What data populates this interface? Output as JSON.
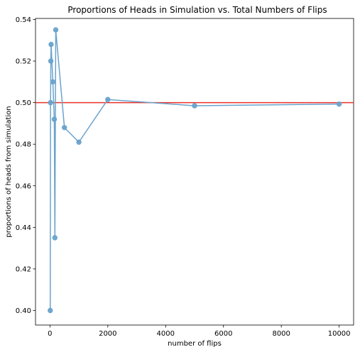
{
  "chart_data": {
    "type": "line",
    "title": "Proportions of Heads in Simulation vs. Total Numbers of Flips",
    "xlabel": "number of flips",
    "ylabel": "proportions of heads from simulation",
    "xlim": [
      -500,
      10500
    ],
    "ylim": [
      0.393,
      0.5405
    ],
    "xticks": [
      0,
      2000,
      4000,
      6000,
      8000,
      10000
    ],
    "xtick_labels": [
      "0",
      "2000",
      "4000",
      "6000",
      "8000",
      "10000"
    ],
    "yticks": [
      0.4,
      0.42,
      0.44,
      0.46,
      0.48,
      0.5,
      0.52,
      0.54
    ],
    "ytick_labels": [
      "0.40",
      "0.42",
      "0.44",
      "0.46",
      "0.48",
      "0.50",
      "0.52",
      "0.54"
    ],
    "grid": false,
    "series": [
      {
        "color": "#6aa3cc",
        "marker": "circle",
        "points": [
          {
            "x": 10,
            "y": 0.4
          },
          {
            "x": 20,
            "y": 0.5
          },
          {
            "x": 30,
            "y": 0.52
          },
          {
            "x": 40,
            "y": 0.528
          },
          {
            "x": 100,
            "y": 0.51
          },
          {
            "x": 150,
            "y": 0.492
          },
          {
            "x": 170,
            "y": 0.435
          },
          {
            "x": 200,
            "y": 0.535
          },
          {
            "x": 500,
            "y": 0.488
          },
          {
            "x": 1000,
            "y": 0.481
          },
          {
            "x": 2000,
            "y": 0.5015
          },
          {
            "x": 5000,
            "y": 0.4985
          },
          {
            "x": 10000,
            "y": 0.4993
          }
        ]
      }
    ],
    "reference_line": {
      "y": 0.5,
      "color": "#e8312a"
    }
  }
}
